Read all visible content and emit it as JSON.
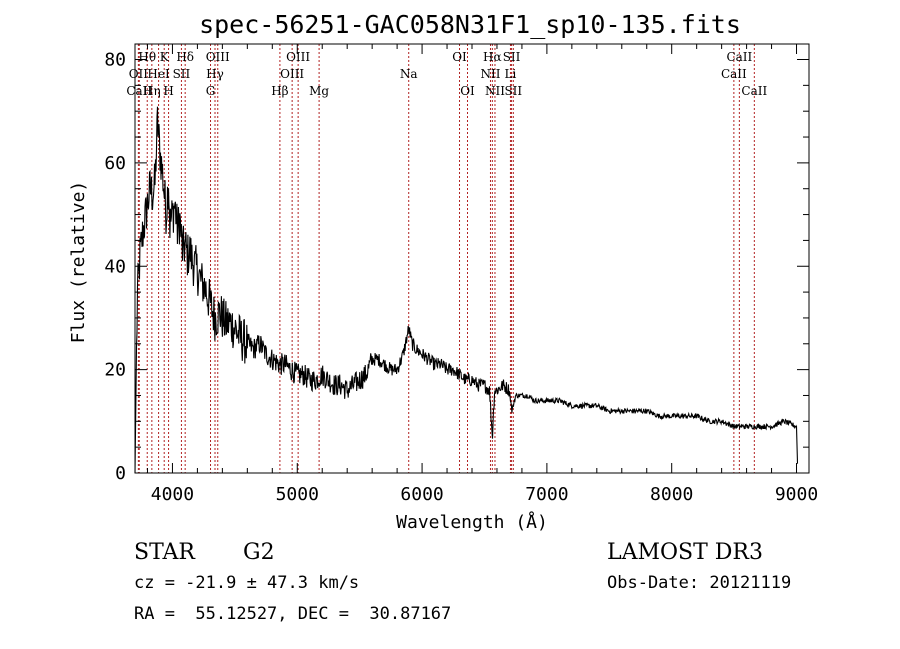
{
  "chart_data": {
    "type": "line",
    "title": "spec-56251-GAC058N31F1_sp10-135.fits",
    "xlabel": "Wavelength (Å)",
    "ylabel": "Flux (relative)",
    "xlim": [
      3700,
      9100
    ],
    "ylim": [
      0,
      83
    ],
    "xticks": [
      4000,
      5000,
      6000,
      7000,
      8000,
      9000
    ],
    "yticks": [
      0,
      20,
      40,
      60,
      80
    ],
    "x_minor_step": 200,
    "y_minor_step": 5,
    "spectrum_x": [
      3700,
      3710,
      3720,
      3730,
      3740,
      3760,
      3780,
      3800,
      3820,
      3840,
      3860,
      3880,
      3900,
      3920,
      3935,
      3950,
      3968,
      3980,
      4000,
      4020,
      4040,
      4060,
      4080,
      4102,
      4120,
      4140,
      4160,
      4180,
      4200,
      4230,
      4260,
      4300,
      4340,
      4380,
      4420,
      4460,
      4500,
      4550,
      4600,
      4650,
      4700,
      4750,
      4800,
      4861,
      4900,
      4950,
      5000,
      5050,
      5100,
      5150,
      5200,
      5250,
      5300,
      5350,
      5400,
      5450,
      5500,
      5550,
      5600,
      5650,
      5700,
      5750,
      5800,
      5850,
      5893,
      5920,
      5950,
      6000,
      6050,
      6100,
      6150,
      6200,
      6250,
      6300,
      6350,
      6400,
      6450,
      6500,
      6540,
      6563,
      6580,
      6600,
      6650,
      6700,
      6720,
      6750,
      6800,
      6850,
      6900,
      7000,
      7100,
      7200,
      7300,
      7400,
      7500,
      7600,
      7700,
      7800,
      7900,
      8000,
      8100,
      8200,
      8300,
      8400,
      8500,
      8600,
      8700,
      8800,
      8900,
      9000,
      9010
    ],
    "spectrum_y": [
      0,
      20,
      35,
      38,
      42,
      46,
      49,
      52,
      55,
      54,
      56,
      68,
      62,
      58,
      54,
      50,
      57,
      48,
      50,
      52,
      47,
      49,
      43,
      44,
      42,
      43,
      41,
      40,
      39,
      37,
      36,
      33,
      30,
      31,
      29,
      29,
      28,
      26,
      25,
      24,
      25,
      23,
      22,
      21,
      21,
      20,
      19,
      19,
      18,
      18,
      19,
      18,
      17,
      17,
      16,
      17,
      18,
      19,
      22,
      22,
      21,
      20,
      20,
      23,
      28,
      25,
      24,
      23,
      22,
      21,
      21,
      20,
      20,
      19,
      18,
      18,
      17,
      17,
      16,
      7,
      16,
      16,
      17,
      16,
      12,
      15,
      15,
      15,
      14,
      14,
      14,
      13,
      13,
      13,
      12,
      12,
      12,
      12,
      11,
      11,
      11,
      11,
      10,
      10,
      9,
      9,
      9,
      9,
      10,
      9,
      0
    ],
    "lines": [
      {
        "label": "Hθ",
        "x": 3798,
        "row": 1
      },
      {
        "label": "OII",
        "x": 3727,
        "row": 2
      },
      {
        "label": "CaII",
        "x": 3734,
        "row": 3
      },
      {
        "label": "Hη",
        "x": 3835,
        "row": 3
      },
      {
        "label": "K",
        "x": 3934,
        "row": 1
      },
      {
        "label": "HeI",
        "x": 3889,
        "row": 2
      },
      {
        "label": "H",
        "x": 3969,
        "row": 3
      },
      {
        "label": "SII",
        "x": 4072,
        "row": 2
      },
      {
        "label": "Hδ",
        "x": 4102,
        "row": 1
      },
      {
        "label": "OIII",
        "x": 4363,
        "row": 1
      },
      {
        "label": "Hγ",
        "x": 4341,
        "row": 2
      },
      {
        "label": "G",
        "x": 4305,
        "row": 3
      },
      {
        "label": "Hβ",
        "x": 4861,
        "row": 3
      },
      {
        "label": "OIII",
        "x": 5007,
        "row": 1
      },
      {
        "label": "OIII",
        "x": 4959,
        "row": 2
      },
      {
        "label": "Mg",
        "x": 5175,
        "row": 3
      },
      {
        "label": "Na",
        "x": 5893,
        "row": 2
      },
      {
        "label": "OI",
        "x": 6300,
        "row": 1
      },
      {
        "label": "OI",
        "x": 6364,
        "row": 3
      },
      {
        "label": "Hα",
        "x": 6563,
        "row": 1
      },
      {
        "label": "SII",
        "x": 6717,
        "row": 1
      },
      {
        "label": "NII",
        "x": 6548,
        "row": 2
      },
      {
        "label": "Li",
        "x": 6708,
        "row": 2
      },
      {
        "label": "NII",
        "x": 6584,
        "row": 3
      },
      {
        "label": "SII",
        "x": 6731,
        "row": 3
      },
      {
        "label": "CaII",
        "x": 8542,
        "row": 1
      },
      {
        "label": "CaII",
        "x": 8498,
        "row": 2
      },
      {
        "label": "CaII",
        "x": 8662,
        "row": 3
      }
    ]
  },
  "info": {
    "object_class": "STAR",
    "subclass": "G2",
    "survey": "LAMOST DR3",
    "cz": "cz = -21.9 ± 47.3 km/s",
    "obs_date": "Obs-Date: 20121119",
    "coords": "RA =  55.12527, DEC =  30.87167"
  },
  "colors": {
    "spectrum": "#000000",
    "line_markers": "#b22222",
    "axes": "#000000"
  }
}
